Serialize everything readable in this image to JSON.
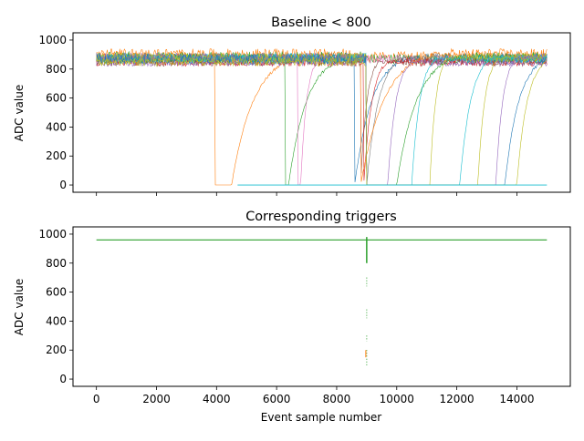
{
  "chart_data": [
    {
      "type": "line",
      "title": "Baseline < 800",
      "xlabel": "",
      "ylabel": "ADC value",
      "xlim": [
        -780,
        15780
      ],
      "ylim": [
        -50,
        1050
      ],
      "xticks": [
        0,
        2000,
        4000,
        6000,
        8000,
        10000,
        12000,
        14000
      ],
      "xtick_labels_visible": false,
      "yticks": [
        0,
        200,
        400,
        600,
        800,
        1000
      ],
      "ytick_labels": [
        "0",
        "200",
        "400",
        "600",
        "800",
        "1000"
      ],
      "grid": false,
      "legend": "none",
      "series": [
        {
          "color": "#ff7f0e",
          "baseline": 880,
          "drop_start": 8700,
          "recover_start": 4500,
          "recover_end": 6700,
          "zero_from": 3950,
          "noise": 40
        },
        {
          "color": "#2ca02c",
          "baseline": 870,
          "drop_start": 8400,
          "recover_start": 6400,
          "recover_end": 8200,
          "zero_from": 6300,
          "noise": 35
        },
        {
          "color": "#e377c2",
          "baseline": 870,
          "drop_start": 8300,
          "recover_start": 6800,
          "recover_end": 7400,
          "zero_from": 6700,
          "noise": 30
        },
        {
          "color": "#1f77b4",
          "baseline": 870,
          "drop_start": 8600,
          "recover_start": 8600,
          "recover_end": 10300,
          "zero_from": 8600,
          "noise": 40
        },
        {
          "color": "#8c564b",
          "baseline": 850,
          "drop_start": 8900,
          "recover_start": 8800,
          "recover_end": 9400,
          "zero_from": 8800,
          "noise": 30
        },
        {
          "color": "#d62728",
          "baseline": 850,
          "drop_start": 8950,
          "recover_start": 8900,
          "recover_end": 9700,
          "zero_from": 8900,
          "noise": 30
        },
        {
          "color": "#7f7f7f",
          "baseline": 880,
          "drop_start": 9000,
          "recover_start": 9000,
          "recover_end": 10200,
          "zero_from": 9000,
          "noise": 30
        },
        {
          "color": "#ff7f0e",
          "baseline": 900,
          "drop_start": 9000,
          "recover_start": 8800,
          "recover_end": 11200,
          "zero_from": 8800,
          "noise": 40
        },
        {
          "color": "#9467bd",
          "baseline": 850,
          "drop_start": 9000,
          "recover_start": 9700,
          "recover_end": 10500,
          "zero_from": 9700,
          "noise": 30
        },
        {
          "color": "#2ca02c",
          "baseline": 880,
          "drop_start": 9000,
          "recover_start": 10000,
          "recover_end": 12000,
          "zero_from": 9900,
          "noise": 40
        },
        {
          "color": "#17becf",
          "baseline": 870,
          "drop_start": 9000,
          "recover_start": 10500,
          "recover_end": 11300,
          "zero_from": 10500,
          "noise": 30
        },
        {
          "color": "#bcbd22",
          "baseline": 880,
          "drop_start": 9000,
          "recover_start": 11100,
          "recover_end": 11700,
          "zero_from": 11100,
          "noise": 30
        },
        {
          "color": "#17becf",
          "baseline": 880,
          "drop_start": 9000,
          "recover_start": 12100,
          "recover_end": 13200,
          "zero_from": 12000,
          "noise": 30
        },
        {
          "color": "#bcbd22",
          "baseline": 880,
          "drop_start": 9000,
          "recover_start": 12700,
          "recover_end": 13400,
          "zero_from": 12700,
          "noise": 30
        },
        {
          "color": "#9467bd",
          "baseline": 880,
          "drop_start": 9000,
          "recover_start": 13300,
          "recover_end": 14000,
          "zero_from": 13300,
          "noise": 30
        },
        {
          "color": "#1f77b4",
          "baseline": 870,
          "drop_start": 9000,
          "recover_start": 13600,
          "recover_end": 15000,
          "zero_from": 13600,
          "noise": 35
        },
        {
          "color": "#bcbd22",
          "baseline": 850,
          "drop_start": 9000,
          "recover_start": 14000,
          "recover_end": 15000,
          "zero_from": 14000,
          "noise": 30
        }
      ]
    },
    {
      "type": "line",
      "title": "Corresponding triggers",
      "xlabel": "Event sample number",
      "ylabel": "ADC value",
      "xlim": [
        -780,
        15780
      ],
      "ylim": [
        -50,
        1050
      ],
      "xticks": [
        0,
        2000,
        4000,
        6000,
        8000,
        10000,
        12000,
        14000
      ],
      "xtick_labels": [
        "0",
        "2000",
        "4000",
        "6000",
        "8000",
        "10000",
        "12000",
        "14000"
      ],
      "yticks": [
        0,
        200,
        400,
        600,
        800,
        1000
      ],
      "ytick_labels": [
        "0",
        "200",
        "400",
        "600",
        "800",
        "1000"
      ],
      "grid": false,
      "legend": "none",
      "series": [
        {
          "color": "#2ca02c",
          "level": 960,
          "x_range": [
            0,
            15000
          ],
          "trigger_at": 9000,
          "trigger_min": 90
        }
      ]
    }
  ]
}
